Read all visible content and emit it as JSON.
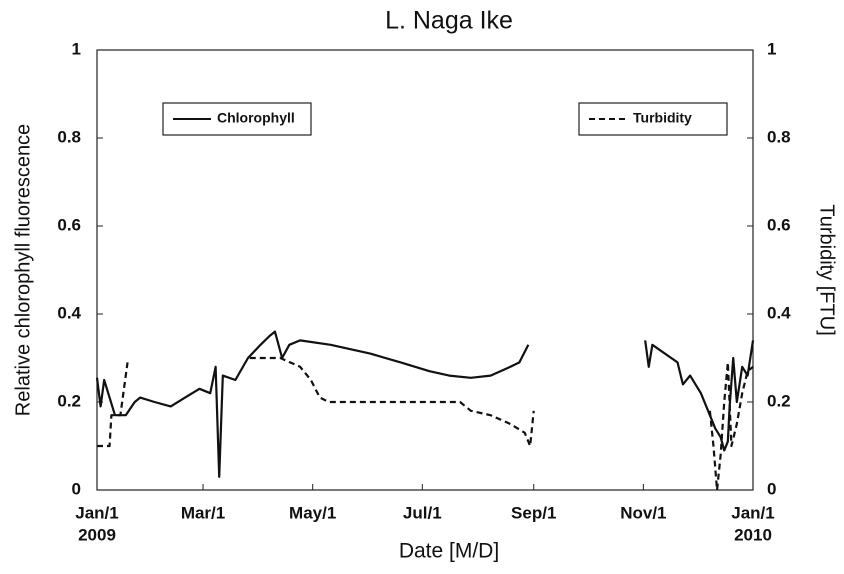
{
  "chart_data": {
    "type": "line",
    "title": "L. Naga Ike",
    "xlabel": "Date [M/D]",
    "ylabel": "Relative chlorophyll fluorescence",
    "y2label": "Turbidity [FTU]",
    "xlim": [
      0,
      365
    ],
    "xticks": [
      {
        "value": 0,
        "label": "Jan/1"
      },
      {
        "value": 59,
        "label": "Mar/1"
      },
      {
        "value": 120,
        "label": "May/1"
      },
      {
        "value": 181,
        "label": "Jul/1"
      },
      {
        "value": 243,
        "label": "Sep/1"
      },
      {
        "value": 304,
        "label": "Nov/1"
      },
      {
        "value": 365,
        "label": "Jan/1"
      }
    ],
    "year_labels": [
      {
        "value": 0,
        "label": "2009"
      },
      {
        "value": 365,
        "label": "2010"
      }
    ],
    "ylim": [
      0,
      1
    ],
    "yticks": [
      0,
      0.2,
      0.4,
      0.6,
      0.8,
      1
    ],
    "y2lim": [
      0,
      1
    ],
    "y2ticks": [
      0,
      0.2,
      0.4,
      0.6,
      0.8,
      1
    ],
    "series": [
      {
        "name": "Chlorophyll",
        "color": "#111111",
        "dash": "solid",
        "legend_loc": "upper left",
        "x": [
          0,
          2,
          4,
          10,
          16,
          21,
          24,
          32,
          41,
          49,
          57,
          63,
          66,
          68,
          70,
          77,
          84,
          91,
          96,
          99,
          103,
          107,
          113,
          130,
          152,
          169,
          185,
          196,
          208,
          219,
          230,
          235,
          240,
          272,
          305,
          307,
          309,
          323,
          326,
          330,
          336,
          341,
          344,
          347,
          349,
          351,
          352,
          354,
          356,
          359,
          362,
          365
        ],
        "values": [
          0.255,
          0.19,
          0.25,
          0.17,
          0.17,
          0.2,
          0.21,
          0.2,
          0.19,
          0.21,
          0.23,
          0.22,
          0.28,
          0.03,
          0.26,
          0.25,
          0.3,
          0.33,
          0.35,
          0.36,
          0.3,
          0.33,
          0.34,
          0.33,
          0.31,
          0.29,
          0.27,
          0.26,
          0.255,
          0.26,
          0.28,
          0.29,
          0.33,
          null,
          0.34,
          0.28,
          0.33,
          0.29,
          0.24,
          0.26,
          0.22,
          0.17,
          0.14,
          0.12,
          0.09,
          0.11,
          0.19,
          0.3,
          0.2,
          0.28,
          0.26,
          0.34
        ]
      },
      {
        "name": "Turbidity",
        "color": "#111111",
        "dash": "dashed",
        "legend_loc": "upper right",
        "axis": "y2",
        "x": [
          0,
          7,
          8,
          13,
          17,
          50,
          85,
          102,
          113,
          119,
          124,
          129,
          135,
          169,
          202,
          208,
          219,
          230,
          238,
          241,
          243,
          290,
          341,
          343,
          345,
          347,
          349,
          351,
          353,
          356,
          359,
          362,
          365
        ],
        "values": [
          0.1,
          0.1,
          0.17,
          0.17,
          0.29,
          null,
          0.3,
          0.3,
          0.28,
          0.25,
          0.21,
          0.2,
          0.2,
          0.2,
          0.2,
          0.18,
          0.17,
          0.15,
          0.13,
          0.1,
          0.18,
          null,
          0.18,
          0.1,
          0.0,
          0.08,
          0.2,
          0.29,
          0.1,
          0.15,
          0.22,
          0.27,
          0.28
        ]
      }
    ]
  }
}
